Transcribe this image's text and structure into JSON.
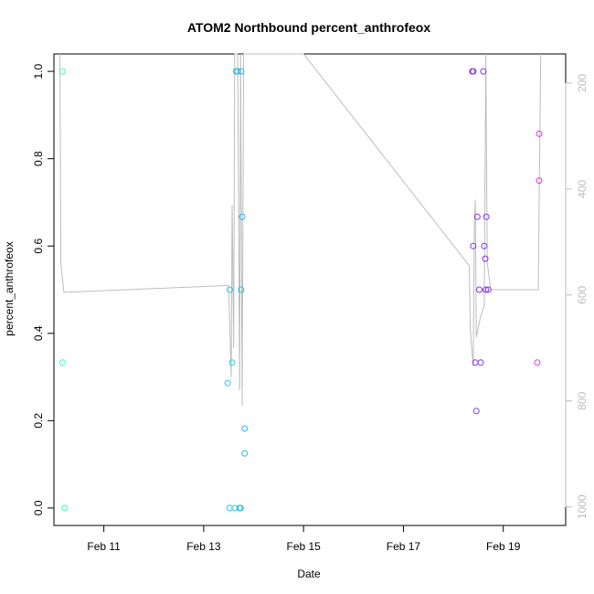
{
  "chart_data": {
    "type": "scatter",
    "title": "ATOM2 Northbound percent_anthrofeox",
    "xlabel": "Date",
    "ylabel": "percent_anthrofeox",
    "x_range_days": [
      10.0,
      20.25
    ],
    "ylim": [
      -0.04,
      1.04
    ],
    "x_ticks": [
      {
        "value": 11,
        "label": "Feb 11"
      },
      {
        "value": 13,
        "label": "Feb 13"
      },
      {
        "value": 15,
        "label": "Feb 15"
      },
      {
        "value": 17,
        "label": "Feb 17"
      },
      {
        "value": 19,
        "label": "Feb 19"
      }
    ],
    "y_ticks": [
      0.0,
      0.2,
      0.4,
      0.6,
      0.8,
      1.0
    ],
    "y_tick_labels": [
      "0.0",
      "0.2",
      "0.4",
      "0.6",
      "0.8",
      "1.0"
    ],
    "right_axis": {
      "ylim": [
        1035,
        145
      ],
      "ticks": [
        200,
        400,
        600,
        800,
        1000
      ],
      "tick_labels": [
        "200",
        "400",
        "600",
        "800",
        "1000"
      ],
      "color": "#bdbdbd"
    },
    "line_series_right": {
      "color": "#bdbdbd",
      "points": [
        [
          10.12,
          145
        ],
        [
          10.14,
          540
        ],
        [
          10.2,
          595
        ],
        [
          13.5,
          582
        ],
        [
          13.55,
          755
        ],
        [
          13.57,
          430
        ],
        [
          13.6,
          700
        ],
        [
          13.62,
          145
        ],
        [
          13.68,
          145
        ],
        [
          13.72,
          780
        ],
        [
          13.74,
          145
        ],
        [
          13.77,
          810
        ],
        [
          13.8,
          145
        ],
        [
          13.85,
          145
        ],
        [
          15.0,
          145
        ],
        [
          18.32,
          545
        ],
        [
          18.34,
          665
        ],
        [
          18.4,
          735
        ],
        [
          18.42,
          470
        ],
        [
          18.44,
          420
        ],
        [
          18.46,
          680
        ],
        [
          18.5,
          660
        ],
        [
          18.55,
          640
        ],
        [
          18.62,
          620
        ],
        [
          18.65,
          145
        ],
        [
          18.68,
          540
        ],
        [
          18.75,
          590
        ],
        [
          19.7,
          590
        ],
        [
          19.75,
          145
        ]
      ]
    },
    "points": [
      {
        "x": 10.17,
        "y": 1.0,
        "color": "#33ffbb"
      },
      {
        "x": 10.17,
        "y": 0.333,
        "color": "#33ffbb"
      },
      {
        "x": 10.22,
        "y": 0.0,
        "color": "#33ffbb"
      },
      {
        "x": 13.48,
        "y": 0.286,
        "color": "#22ccee"
      },
      {
        "x": 13.52,
        "y": 0.5,
        "color": "#22ccee"
      },
      {
        "x": 13.52,
        "y": 0.0,
        "color": "#22ccee"
      },
      {
        "x": 13.57,
        "y": 0.333,
        "color": "#22ccee"
      },
      {
        "x": 13.62,
        "y": 0.0,
        "color": "#22ccee"
      },
      {
        "x": 13.65,
        "y": 1.0,
        "color": "#22bbee"
      },
      {
        "x": 13.68,
        "y": 1.0,
        "color": "#22bbee"
      },
      {
        "x": 13.72,
        "y": 0.0,
        "color": "#22bbee"
      },
      {
        "x": 13.74,
        "y": 0.0,
        "color": "#22bbee"
      },
      {
        "x": 13.75,
        "y": 0.5,
        "color": "#22bbee"
      },
      {
        "x": 13.75,
        "y": 1.0,
        "color": "#22bbee"
      },
      {
        "x": 13.77,
        "y": 0.667,
        "color": "#22bbee"
      },
      {
        "x": 13.82,
        "y": 0.182,
        "color": "#22bbee"
      },
      {
        "x": 13.82,
        "y": 0.125,
        "color": "#22bbee"
      },
      {
        "x": 18.38,
        "y": 1.0,
        "color": "#8833ee"
      },
      {
        "x": 18.4,
        "y": 1.0,
        "color": "#8833ee"
      },
      {
        "x": 18.4,
        "y": 0.6,
        "color": "#8833ee"
      },
      {
        "x": 18.44,
        "y": 0.333,
        "color": "#8833ee"
      },
      {
        "x": 18.46,
        "y": 0.222,
        "color": "#8833ee"
      },
      {
        "x": 18.48,
        "y": 0.667,
        "color": "#8833ee"
      },
      {
        "x": 18.52,
        "y": 0.5,
        "color": "#8833ee"
      },
      {
        "x": 18.55,
        "y": 0.333,
        "color": "#8833ee"
      },
      {
        "x": 18.6,
        "y": 1.0,
        "color": "#8833ee"
      },
      {
        "x": 18.62,
        "y": 0.6,
        "color": "#8833ee"
      },
      {
        "x": 18.64,
        "y": 0.571,
        "color": "#8833ee"
      },
      {
        "x": 18.65,
        "y": 0.5,
        "color": "#8833ee"
      },
      {
        "x": 18.66,
        "y": 0.667,
        "color": "#8833ee"
      },
      {
        "x": 18.7,
        "y": 0.5,
        "color": "#8833ee"
      },
      {
        "x": 19.68,
        "y": 0.333,
        "color": "#dd33ee"
      },
      {
        "x": 19.72,
        "y": 0.75,
        "color": "#dd33ee"
      },
      {
        "x": 19.72,
        "y": 0.857,
        "color": "#dd33ee"
      }
    ]
  }
}
